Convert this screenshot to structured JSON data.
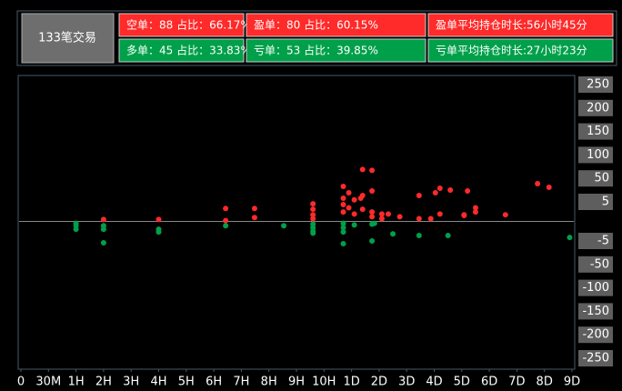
{
  "stats": {
    "title": "133笔交易",
    "rows": [
      [
        "空单：88  占比：66.17%",
        "盈单：80  占比：60.15%",
        "盈单平均持仓时长:56小时45分"
      ],
      [
        "多单：45  占比：33.83%",
        "亏单：53  占比：39.85%",
        "亏单平均持仓时长:27小时23分"
      ]
    ],
    "row_colors": [
      "#ff2a2a",
      "#00a04a"
    ]
  },
  "chart_data": {
    "type": "scatter",
    "xticks": [
      0,
      {
        "value": 0.5,
        "label": "30M"
      },
      {
        "value": 1,
        "label": "1H"
      },
      {
        "value": 2,
        "label": "2H"
      },
      {
        "value": 3,
        "label": "3H"
      },
      {
        "value": 4,
        "label": "4H"
      },
      {
        "value": 5,
        "label": "5H"
      },
      {
        "value": 6,
        "label": "6H"
      },
      {
        "value": 7,
        "label": "7H"
      },
      {
        "value": 8,
        "label": "8H"
      },
      {
        "value": 9,
        "label": "9H"
      },
      {
        "value": 10,
        "label": "10H"
      },
      {
        "value": 24,
        "label": "1D"
      },
      {
        "value": 48,
        "label": "2D"
      },
      {
        "value": 72,
        "label": "3D"
      },
      {
        "value": 96,
        "label": "4D"
      },
      {
        "value": 120,
        "label": "5D"
      },
      {
        "value": 144,
        "label": "6D"
      },
      {
        "value": 168,
        "label": "7D"
      },
      {
        "value": 192,
        "label": "8D"
      },
      {
        "value": 216,
        "label": "9D"
      }
    ],
    "xlim": [
      0,
      216
    ],
    "yticks": [
      250,
      200,
      150,
      100,
      50,
      5,
      -5,
      -50,
      -100,
      -150,
      -200,
      -250
    ],
    "ylim": [
      -250,
      250
    ],
    "series": [
      {
        "color": "#ff2a2a",
        "x": [
          2,
          4,
          6.43,
          6.43,
          7.48,
          7.48,
          9.6,
          9.6,
          9.6,
          9.6,
          19.8,
          19.8,
          19.8,
          19.8,
          22.6,
          22.6,
          26.4,
          26.4,
          33.6,
          33.6,
          33.6,
          32,
          41.8,
          41.8,
          41.8,
          41.8,
          50.4,
          50.4,
          56,
          66,
          82.8,
          82.8,
          93,
          97,
          101,
          101,
          110,
          122,
          122,
          125,
          132,
          132,
          158,
          186,
          196
        ],
        "values": [
          0.5,
          0.5,
          3.3,
          0.2,
          3.3,
          1,
          4.5,
          3.1,
          1.7,
          0.7,
          34.6,
          12,
          4.3,
          2.4,
          22.4,
          3.5,
          9,
          1.9,
          69,
          17.2,
          3.1,
          12,
          67,
          25.9,
          2.4,
          1.2,
          1.9,
          0.7,
          1.9,
          1.2,
          17.2,
          0.7,
          0.7,
          22.4,
          31.2,
          1.9,
          27.7,
          1.7,
          1.5,
          25.9,
          3.5,
          2.4,
          1.7,
          39.9,
          32.9
        ]
      },
      {
        "color": "#00a04a",
        "x": [
          1,
          1,
          1,
          2,
          2,
          2,
          4,
          4,
          6.43,
          8.54,
          9.6,
          9.6,
          9.6,
          9.6,
          19.8,
          19.8,
          19.8,
          19.8,
          26.4,
          41.8,
          41.8,
          44,
          60,
          82.8,
          108,
          214
        ],
        "values": [
          -0.5,
          -1.1,
          -2,
          -1.1,
          -2,
          -8.5,
          -2,
          -2.7,
          -1.1,
          -1.1,
          -0.7,
          -1.6,
          -2.5,
          -3,
          -0.5,
          -1.6,
          -2.7,
          -10.2,
          -0.9,
          -0.7,
          -5,
          -0.5,
          -3.2,
          -3.6,
          -3.6,
          -4.1
        ]
      }
    ]
  }
}
